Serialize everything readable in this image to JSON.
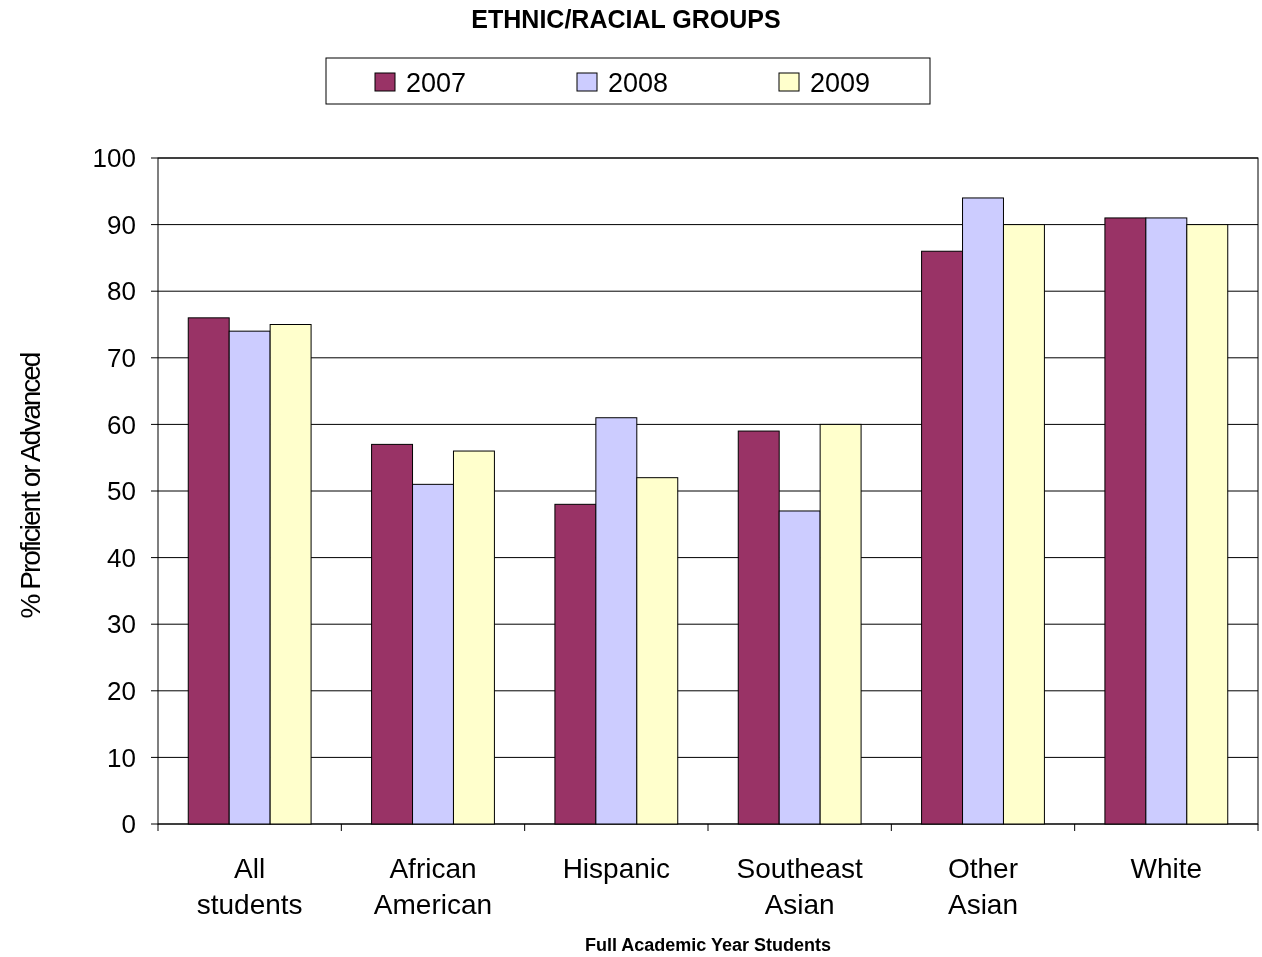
{
  "chart_data": {
    "type": "bar",
    "title": "ETHNIC/RACIAL GROUPS",
    "xlabel": "Full Academic Year Students",
    "ylabel": "% Proficient or Advanced",
    "categories": [
      "All students",
      "African American",
      "Hispanic",
      "Southeast Asian",
      "Other Asian",
      "White"
    ],
    "series": [
      {
        "name": "2007",
        "color": "#993366",
        "values": [
          76,
          57,
          48,
          59,
          86,
          91
        ]
      },
      {
        "name": "2008",
        "color": "#ccccff",
        "values": [
          74,
          51,
          61,
          47,
          94,
          91
        ]
      },
      {
        "name": "2009",
        "color": "#ffffcc",
        "values": [
          75,
          56,
          52,
          60,
          90,
          90
        ]
      }
    ],
    "ylim": [
      0,
      100
    ],
    "yticks": [
      0,
      10,
      20,
      30,
      40,
      50,
      60,
      70,
      80,
      90,
      100
    ],
    "grid": "y",
    "legend": "top"
  }
}
